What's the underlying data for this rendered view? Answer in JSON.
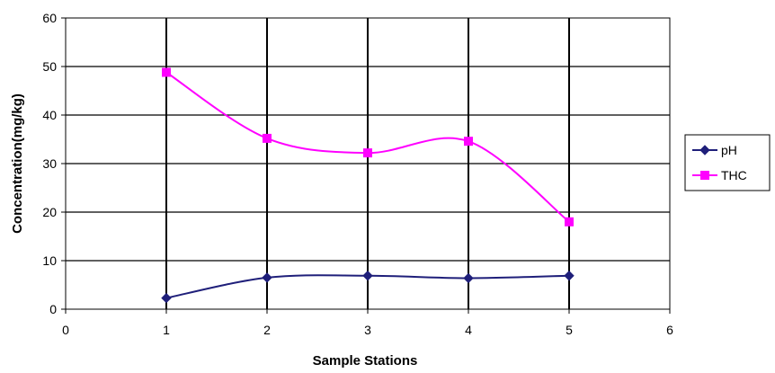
{
  "chart_data": {
    "type": "line",
    "xlabel": "Sample Stations",
    "ylabel": "Concentration(mg/kg)",
    "xlim": [
      0,
      6
    ],
    "ylim": [
      0,
      60
    ],
    "xticks": [
      "0",
      "1",
      "2",
      "3",
      "4",
      "5",
      "6"
    ],
    "yticks": [
      "0",
      "10",
      "20",
      "30",
      "40",
      "50",
      "60"
    ],
    "x": [
      1,
      2,
      3,
      4,
      5
    ],
    "grid": true,
    "smooth": true,
    "legend_position": "right",
    "series": [
      {
        "name": "pH",
        "values": [
          2.3,
          6.5,
          6.9,
          6.4,
          6.9
        ],
        "color": "#1F1F7A",
        "marker": "diamond"
      },
      {
        "name": "THC",
        "values": [
          48.8,
          35.2,
          32.2,
          34.6,
          18.0
        ],
        "color": "#FF00FF",
        "marker": "square"
      }
    ]
  }
}
